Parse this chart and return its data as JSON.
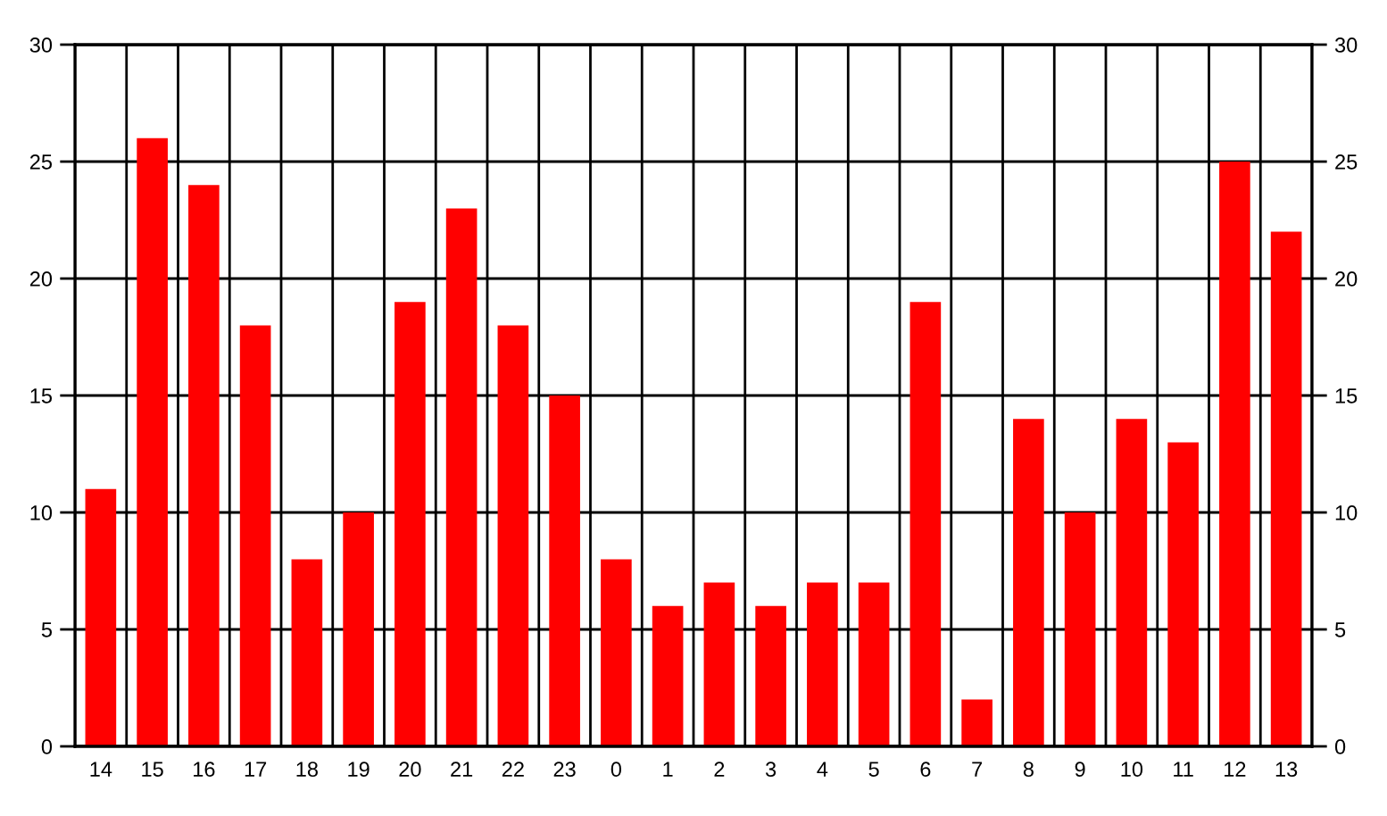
{
  "chart_data": {
    "type": "bar",
    "categories": [
      "14",
      "15",
      "16",
      "17",
      "18",
      "19",
      "20",
      "21",
      "22",
      "23",
      "0",
      "1",
      "2",
      "3",
      "4",
      "5",
      "6",
      "7",
      "8",
      "9",
      "10",
      "11",
      "12",
      "13"
    ],
    "values": [
      11,
      26,
      24,
      18,
      8,
      10,
      19,
      23,
      18,
      15,
      8,
      6,
      7,
      6,
      7,
      7,
      19,
      2,
      14,
      10,
      14,
      13,
      25,
      22
    ],
    "color": "#ff0000",
    "ylim": [
      0,
      30
    ],
    "yticks": [
      0,
      5,
      10,
      15,
      20,
      25,
      30
    ],
    "y2lim": [
      0,
      30
    ],
    "y2ticks": [
      0,
      5,
      10,
      15,
      20,
      25,
      30
    ],
    "grid": true
  }
}
